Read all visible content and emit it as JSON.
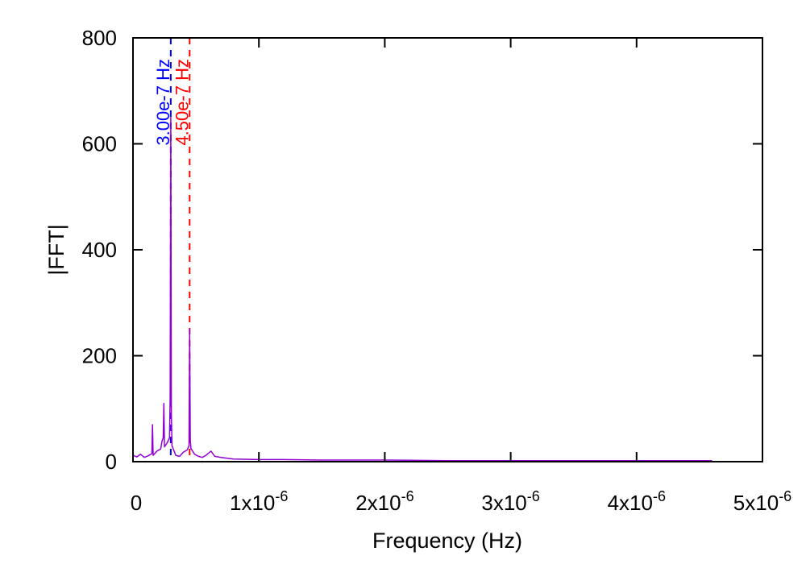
{
  "chart_data": {
    "type": "line",
    "title": "",
    "xlabel": "Frequency (Hz)",
    "ylabel": "|FFT|",
    "xlim": [
      0,
      5e-06
    ],
    "ylim": [
      0,
      800
    ],
    "grid": false,
    "legend": "none",
    "x_ticks": [
      {
        "value": 0,
        "base": "0",
        "exp": ""
      },
      {
        "value": 1e-06,
        "base": "1x10",
        "exp": "-6"
      },
      {
        "value": 2e-06,
        "base": "2x10",
        "exp": "-6"
      },
      {
        "value": 3e-06,
        "base": "3x10",
        "exp": "-6"
      },
      {
        "value": 4e-06,
        "base": "4x10",
        "exp": "-6"
      },
      {
        "value": 5e-06,
        "base": "5x10",
        "exp": "-6"
      }
    ],
    "y_ticks": [
      0,
      200,
      400,
      600,
      800
    ],
    "series": [
      {
        "color": "#9400d3",
        "x": [
          0,
          3e-08,
          6e-08,
          9e-08,
          1.2e-07,
          1.5e-07,
          1.55e-07,
          1.6e-07,
          1.9e-07,
          2.2e-07,
          2.3e-07,
          2.4e-07,
          2.45e-07,
          2.5e-07,
          2.7e-07,
          2.9e-07,
          2.95e-07,
          3e-07,
          3.05e-07,
          3.1e-07,
          3.4e-07,
          3.7e-07,
          4e-07,
          4.3e-07,
          4.45e-07,
          4.5e-07,
          4.55e-07,
          4.6e-07,
          4.9e-07,
          5.2e-07,
          5.5e-07,
          5.8e-07,
          6.2e-07,
          6.5e-07,
          7e-07,
          8e-07,
          1e-06,
          1.2e-06,
          1.5e-06,
          2e-06,
          2.5e-06,
          3e-06,
          3.5e-06,
          4e-06,
          4.5e-06,
          4.6e-06
        ],
        "y": [
          12,
          9,
          14,
          8,
          11,
          15,
          70,
          12,
          20,
          24,
          38,
          45,
          110,
          28,
          35,
          45,
          120,
          650,
          90,
          30,
          12,
          10,
          18,
          22,
          30,
          250,
          40,
          25,
          14,
          10,
          8,
          12,
          20,
          10,
          8,
          5,
          4,
          4,
          3,
          3,
          2,
          2,
          2,
          2,
          2,
          2
        ]
      }
    ],
    "markers": [
      {
        "x": 3e-07,
        "label": "3.00e-7 Hz",
        "color": "#0000ff"
      },
      {
        "x": 4.5e-07,
        "label": "4.50e-7 Hz",
        "color": "#ff0000"
      }
    ]
  }
}
